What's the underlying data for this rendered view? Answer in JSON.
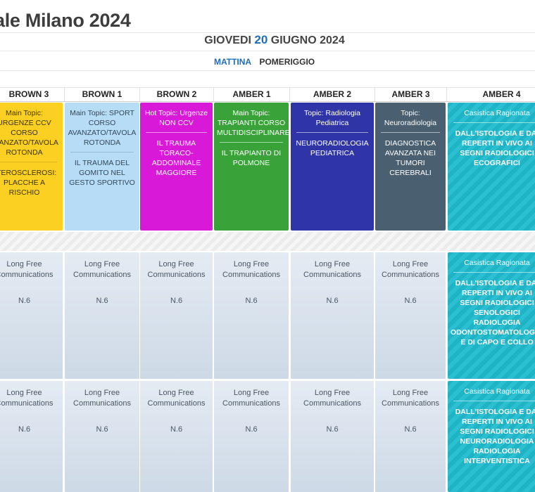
{
  "page": {
    "title": "ale Milano 2024",
    "date_prefix": "GIOVEDI",
    "date_day": "20",
    "date_suffix": "GIUGNO 2024"
  },
  "tabs": [
    {
      "label": "MATTINA",
      "active": true
    },
    {
      "label": "POMERIGGIO",
      "active": false
    }
  ],
  "columns": [
    {
      "name": "BROWN 3"
    },
    {
      "name": "BROWN 1"
    },
    {
      "name": "BROWN 2"
    },
    {
      "name": "AMBER 1"
    },
    {
      "name": "AMBER 2"
    },
    {
      "name": "AMBER 3"
    },
    {
      "name": "AMBER 4"
    }
  ],
  "sessions": [
    {
      "topic": "Main Topic: URGENZE CCV CORSO AVANZATO/TAVOLA ROTONDA",
      "talk": "ATEROSCLEROSI: PLACCHE A RISCHIO",
      "color": "#fbd023"
    },
    {
      "topic": "Main Topic: SPORT CORSO AVANZATO/TAVOLA ROTONDA",
      "talk": "IL TRAUMA DEL GOMITO NEL GESTO SPORTIVO",
      "color": "#b6dcf6"
    },
    {
      "topic": "Hot Topic: Urgenze NON CCV",
      "talk": "IL TRAUMA TORACO-ADDOMINALE MAGGIORE",
      "color": "#d81ad8"
    },
    {
      "topic": "Main Topic: TRAPIANTI CORSO MULTIDISCIPLINARE",
      "talk": "IL TRAPIANTO DI POLMONE",
      "color": "#39a33a"
    },
    {
      "topic": "Topic: Radiologia Pediatrica",
      "talk": "NEURORADIOLOGIA PEDIATRICA",
      "color": "#2f35a6"
    },
    {
      "topic": "Topic: Neuroradiologia",
      "talk": "DIAGNOSTICA AVANZATA NEI TUMORI CEREBRALI",
      "color": "#4a6071"
    },
    {
      "topic": "Casistica Ragionata",
      "talk": "DALL'ISTOLOGIA E DAI REPERTI IN VIVO AI SEGNI RADIOLOGICI ECOGRAFICI",
      "color": "#1fb3c6"
    }
  ],
  "free_comm": {
    "label": "Long Free Communications",
    "number": "N.6"
  },
  "amber4_row2": {
    "topic": "Casistica Ragionata",
    "talk": "DALL'ISTOLOGIA E DAI REPERTI IN VIVO AI SEGNI RADIOLOGICI SENOLOGICI RADIOLOGIA ODONTOSTOMATOLOGICA E DI CAPO E COLLO"
  },
  "amber4_row3": {
    "topic": "Casistica Ragionata",
    "talk": "DALL'ISTOLOGIA E DAI REPERTI IN VIVO AI SEGNI RADIOLOGICI NEURORADIOLOGIA RADIOLOGIA INTERVENTISTICA"
  }
}
